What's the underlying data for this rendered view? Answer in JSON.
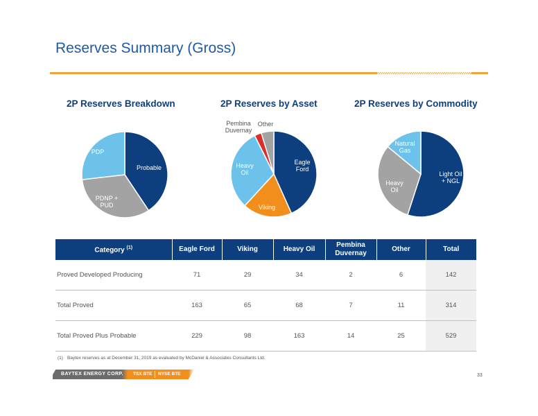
{
  "slide": {
    "title": "Reserves Summary (Gross)",
    "page_number": "33",
    "footnote_number": "(1)",
    "footnote_text": "Baytex reserves as at December 31, 2019 as evaluated by McDaniel & Associates Consultants Ltd.",
    "footer_company": "BAYTEX ENERGY CORP.",
    "footer_ticker_tsx": "TSX BTE",
    "footer_ticker_nyse": "NYSE BTE"
  },
  "colors": {
    "title_blue": "#1f5aa6",
    "navy": "#0d3f7f",
    "light_blue": "#6cc2ea",
    "gray": "#a3a3a3",
    "orange": "#f28e1c",
    "red": "#d7312b",
    "rule_orange": "#f2a33c"
  },
  "chart_data": [
    {
      "type": "pie",
      "title": "2P Reserves Breakdown",
      "slices": [
        {
          "label": "Probable",
          "value": 215
        },
        {
          "label": "PDNP + PUD",
          "value": 172
        },
        {
          "label": "PDP",
          "value": 142
        }
      ]
    },
    {
      "type": "pie",
      "title": "2P Reserves by Asset",
      "slices": [
        {
          "label": "Eagle Ford",
          "value": 229
        },
        {
          "label": "Viking",
          "value": 98
        },
        {
          "label": "Heavy Oil",
          "value": 163
        },
        {
          "label": "Pembina Duvernay",
          "value": 14
        },
        {
          "label": "Other",
          "value": 25
        }
      ]
    },
    {
      "type": "pie",
      "title": "2P Reserves by Commodity",
      "slices": [
        {
          "label": "Light Oil + NGL",
          "value": 55
        },
        {
          "label": "Heavy Oil",
          "value": 31
        },
        {
          "label": "Natural Gas",
          "value": 14
        }
      ]
    },
    {
      "type": "table",
      "columns": [
        "Category",
        "Eagle Ford",
        "Viking",
        "Heavy Oil",
        "Pembina Duvernay",
        "Other",
        "Total"
      ],
      "category_note": "(1)",
      "rows": [
        {
          "category": "Proved Developed Producing",
          "values": [
            "71",
            "29",
            "34",
            "2",
            "6",
            "142"
          ]
        },
        {
          "category": "Total Proved",
          "values": [
            "163",
            "65",
            "68",
            "7",
            "11",
            "314"
          ]
        },
        {
          "category": "Total Proved Plus Probable",
          "values": [
            "229",
            "98",
            "163",
            "14",
            "25",
            "529"
          ]
        }
      ]
    }
  ]
}
